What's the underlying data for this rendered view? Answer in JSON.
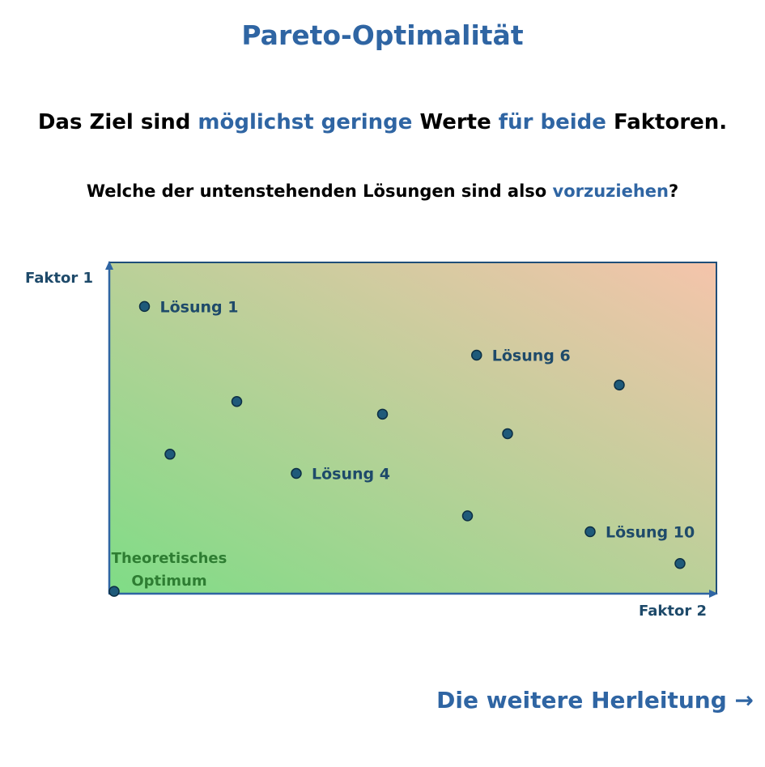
{
  "title": "Pareto-Optimalität",
  "line1": {
    "p1": "Das Ziel sind ",
    "h1": "möglichst geringe",
    "p2": " Werte ",
    "h2": "für beide",
    "p3": " Faktoren."
  },
  "line2": {
    "p1": "Welche der untenstehenden Lösungen sind also ",
    "h1": "vorzuziehen",
    "p2": "?"
  },
  "axes": {
    "y_label": "Faktor 1",
    "x_label": "Faktor 2"
  },
  "optimum": {
    "line1": "Theoretisches",
    "line2": "Optimum"
  },
  "colors": {
    "accent": "#2f65a3",
    "gradient_low": "#7fdc86",
    "gradient_high": "#f5c4ab",
    "point": "#1f5a7a",
    "optimum_text": "#2e7d32"
  },
  "chart_data": {
    "type": "scatter",
    "xlabel": "Faktor 2",
    "ylabel": "Faktor 1",
    "points": [
      {
        "x": 5.8,
        "y": 86.7,
        "label": "Lösung 1"
      },
      {
        "x": 10.0,
        "y": 42.1,
        "label": ""
      },
      {
        "x": 21.0,
        "y": 58.0,
        "label": ""
      },
      {
        "x": 30.8,
        "y": 36.3,
        "label": "Lösung 4"
      },
      {
        "x": 45.0,
        "y": 54.2,
        "label": ""
      },
      {
        "x": 60.5,
        "y": 72.0,
        "label": "Lösung 6"
      },
      {
        "x": 59.0,
        "y": 23.5,
        "label": ""
      },
      {
        "x": 65.6,
        "y": 48.3,
        "label": ""
      },
      {
        "x": 84.0,
        "y": 63.0,
        "label": ""
      },
      {
        "x": 79.2,
        "y": 18.7,
        "label": "Lösung 10"
      },
      {
        "x": 94.0,
        "y": 9.1,
        "label": ""
      }
    ],
    "optimum": {
      "x": 0.8,
      "y": 0.7
    }
  },
  "footer": {
    "next_label": "Die weitere Herleitung",
    "arrow": "→"
  }
}
